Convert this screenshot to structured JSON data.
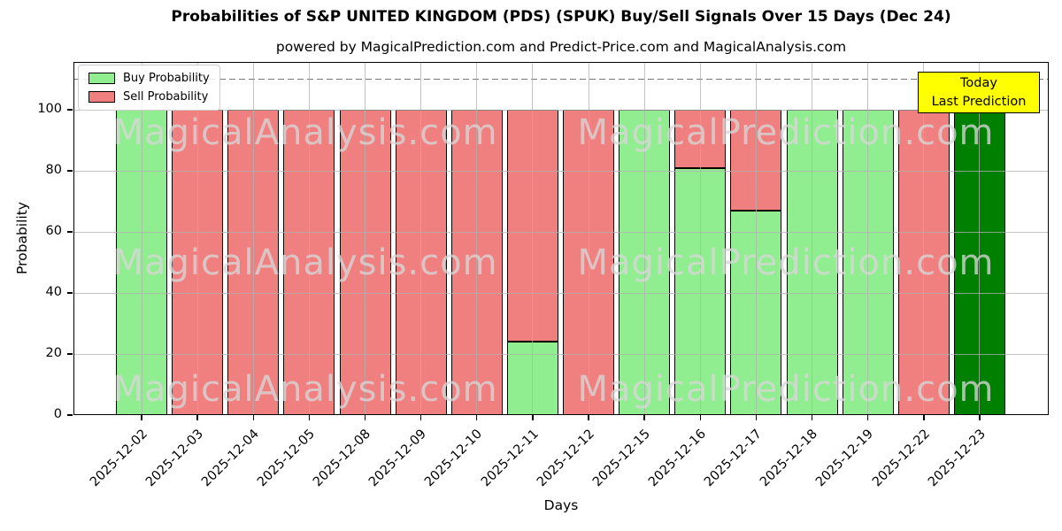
{
  "title": "Probabilities of S&P UNITED KINGDOM (PDS) (SPUK) Buy/Sell Signals Over 15 Days (Dec 24)",
  "subtitle": "powered by MagicalPrediction.com and Predict-Price.com and MagicalAnalysis.com",
  "axes": {
    "ylabel": "Probability",
    "xlabel": "Days",
    "yticks": [
      0,
      20,
      40,
      60,
      80,
      100
    ],
    "ylim": [
      0,
      115.7
    ],
    "dashed_line_y": 110,
    "grid_color": "#b0b0b0"
  },
  "legend": {
    "items": [
      {
        "label": "Buy Probability",
        "color": "#90EE90"
      },
      {
        "label": "Sell Probability",
        "color": "#F08080"
      }
    ]
  },
  "today_box": {
    "line1": "Today",
    "line2": "Last Prediction",
    "bg_color": "#FFFF00"
  },
  "watermarks": {
    "left_text": "MagicalAnalysis.com",
    "right_text": "MagicalPrediction.com"
  },
  "chart_data": {
    "type": "bar",
    "stacked": true,
    "title": "Probabilities of S&P UNITED KINGDOM (PDS) (SPUK) Buy/Sell Signals Over 15 Days (Dec 24)",
    "xlabel": "Days",
    "ylabel": "Probability",
    "ylim": [
      0,
      115.7
    ],
    "grid": true,
    "legend_position": "upper-left",
    "dashed_reference_line_y": 110,
    "categories": [
      "2025-12-02",
      "2025-12-03",
      "2025-12-04",
      "2025-12-05",
      "2025-12-08",
      "2025-12-09",
      "2025-12-10",
      "2025-12-11",
      "2025-12-12",
      "2025-12-15",
      "2025-12-16",
      "2025-12-17",
      "2025-12-18",
      "2025-12-19",
      "2025-12-22",
      "2025-12-23"
    ],
    "series": [
      {
        "name": "Buy Probability",
        "color": "#90EE90",
        "values": [
          100,
          0,
          0,
          0,
          0,
          0,
          0,
          24,
          0,
          100,
          81,
          67,
          100,
          100,
          0,
          100
        ]
      },
      {
        "name": "Sell Probability",
        "color": "#F08080",
        "values": [
          0,
          100,
          100,
          100,
          100,
          100,
          100,
          76,
          100,
          0,
          19,
          33,
          0,
          0,
          100,
          0
        ]
      }
    ],
    "today_bar": {
      "index": 15,
      "date": "2025-12-23",
      "color": "#008000",
      "value": 100
    }
  }
}
